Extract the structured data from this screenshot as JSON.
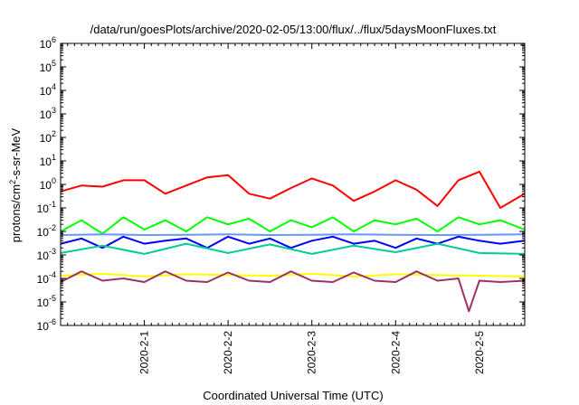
{
  "chart_data": {
    "type": "line",
    "title": "/data/run/goesPlots/archive/2020-02-05/13:00/flux/../flux/5daysMoonFluxes.txt",
    "xlabel": "Coordinated Universal Time (UTC)",
    "ylabel": {
      "base": "protons/cm",
      "sup": "2",
      "rest": "-s-sr-MeV"
    },
    "yscale": "log",
    "ylim": [
      1e-06,
      1000000.0
    ],
    "y_ticks": [
      {
        "exp": -6
      },
      {
        "exp": -5
      },
      {
        "exp": -4
      },
      {
        "exp": -3
      },
      {
        "exp": -2
      },
      {
        "exp": -1
      },
      {
        "exp": 0
      },
      {
        "exp": 1
      },
      {
        "exp": 2
      },
      {
        "exp": 3
      },
      {
        "exp": 4
      },
      {
        "exp": 5
      },
      {
        "exp": 6
      }
    ],
    "tick_base": "10",
    "xlim": [
      "2020-01-31 00:00",
      "2020-02-05 13:00"
    ],
    "x_ticks": [
      "2020-2-1",
      "2020-2-2",
      "2020-2-3",
      "2020-2-4",
      "2020-2-5"
    ],
    "grid": false,
    "series": [
      {
        "color": "#ff0000",
        "x": [
          "2020-01-31 00:00",
          "2020-01-31 06:00",
          "2020-01-31 12:00",
          "2020-01-31 18:00",
          "2020-02-01 00:00",
          "2020-02-01 06:00",
          "2020-02-01 12:00",
          "2020-02-01 18:00",
          "2020-02-02 00:00",
          "2020-02-02 06:00",
          "2020-02-02 12:00",
          "2020-02-02 18:00",
          "2020-02-03 00:00",
          "2020-02-03 06:00",
          "2020-02-03 12:00",
          "2020-02-03 18:00",
          "2020-02-04 00:00",
          "2020-02-04 06:00",
          "2020-02-04 12:00",
          "2020-02-04 18:00",
          "2020-02-05 00:00",
          "2020-02-05 06:00",
          "2020-02-05 13:00"
        ],
        "y": [
          0.5,
          0.9,
          0.8,
          1.5,
          1.5,
          0.4,
          0.9,
          2.0,
          2.5,
          0.4,
          0.25,
          0.7,
          1.8,
          0.9,
          0.2,
          0.5,
          1.5,
          0.6,
          0.12,
          1.5,
          3.5,
          0.1,
          0.4
        ]
      },
      {
        "color": "#00ff00",
        "x": [
          "2020-01-31 00:00",
          "2020-01-31 06:00",
          "2020-01-31 12:00",
          "2020-01-31 18:00",
          "2020-02-01 00:00",
          "2020-02-01 06:00",
          "2020-02-01 12:00",
          "2020-02-01 18:00",
          "2020-02-02 00:00",
          "2020-02-02 06:00",
          "2020-02-02 12:00",
          "2020-02-02 18:00",
          "2020-02-03 00:00",
          "2020-02-03 06:00",
          "2020-02-03 12:00",
          "2020-02-03 18:00",
          "2020-02-04 00:00",
          "2020-02-04 06:00",
          "2020-02-04 12:00",
          "2020-02-04 18:00",
          "2020-02-05 00:00",
          "2020-02-05 06:00",
          "2020-02-05 13:00"
        ],
        "y": [
          0.01,
          0.03,
          0.008,
          0.04,
          0.012,
          0.03,
          0.01,
          0.04,
          0.02,
          0.035,
          0.01,
          0.03,
          0.015,
          0.04,
          0.01,
          0.03,
          0.02,
          0.035,
          0.01,
          0.04,
          0.02,
          0.03,
          0.012
        ]
      },
      {
        "color": "#6699ff",
        "x": [
          "2020-01-31 00:00",
          "2020-01-31 12:00",
          "2020-02-01 00:00",
          "2020-02-01 12:00",
          "2020-02-02 00:00",
          "2020-02-02 12:00",
          "2020-02-03 00:00",
          "2020-02-03 12:00",
          "2020-02-04 00:00",
          "2020-02-04 12:00",
          "2020-02-05 00:00",
          "2020-02-05 13:00"
        ],
        "y": [
          0.007,
          0.0075,
          0.007,
          0.0072,
          0.0075,
          0.007,
          0.0072,
          0.0075,
          0.0072,
          0.007,
          0.0072,
          0.0075
        ]
      },
      {
        "color": "#0000ff",
        "x": [
          "2020-01-31 00:00",
          "2020-01-31 06:00",
          "2020-01-31 12:00",
          "2020-01-31 18:00",
          "2020-02-01 00:00",
          "2020-02-01 06:00",
          "2020-02-01 12:00",
          "2020-02-01 18:00",
          "2020-02-02 00:00",
          "2020-02-02 06:00",
          "2020-02-02 12:00",
          "2020-02-02 18:00",
          "2020-02-03 00:00",
          "2020-02-03 06:00",
          "2020-02-03 12:00",
          "2020-02-03 18:00",
          "2020-02-04 00:00",
          "2020-02-04 06:00",
          "2020-02-04 12:00",
          "2020-02-04 18:00",
          "2020-02-05 00:00",
          "2020-02-05 06:00",
          "2020-02-05 13:00"
        ],
        "y": [
          0.003,
          0.005,
          0.002,
          0.006,
          0.003,
          0.004,
          0.005,
          0.002,
          0.006,
          0.003,
          0.005,
          0.002,
          0.004,
          0.006,
          0.003,
          0.004,
          0.002,
          0.005,
          0.003,
          0.006,
          0.004,
          0.003,
          0.004
        ]
      },
      {
        "color": "#00cc99",
        "x": [
          "2020-01-31 00:00",
          "2020-01-31 12:00",
          "2020-02-01 00:00",
          "2020-02-01 12:00",
          "2020-02-02 00:00",
          "2020-02-02 12:00",
          "2020-02-03 00:00",
          "2020-02-03 12:00",
          "2020-02-04 00:00",
          "2020-02-04 12:00",
          "2020-02-05 00:00",
          "2020-02-05 13:00"
        ],
        "y": [
          0.0012,
          0.0025,
          0.0011,
          0.003,
          0.0012,
          0.0028,
          0.0011,
          0.0025,
          0.0013,
          0.003,
          0.0012,
          0.0011
        ]
      },
      {
        "color": "#ffff00",
        "x": [
          "2020-01-31 00:00",
          "2020-01-31 12:00",
          "2020-02-01 00:00",
          "2020-02-01 12:00",
          "2020-02-02 00:00",
          "2020-02-02 12:00",
          "2020-02-03 00:00",
          "2020-02-03 12:00",
          "2020-02-04 00:00",
          "2020-02-04 12:00",
          "2020-02-05 00:00",
          "2020-02-05 13:00"
        ],
        "y": [
          0.00013,
          0.00016,
          0.00012,
          0.00015,
          0.00014,
          0.00013,
          0.00016,
          0.00012,
          0.00015,
          0.00014,
          0.00013,
          0.00012
        ]
      },
      {
        "color": "#993366",
        "x": [
          "2020-01-31 00:00",
          "2020-01-31 06:00",
          "2020-01-31 12:00",
          "2020-01-31 18:00",
          "2020-02-01 00:00",
          "2020-02-01 06:00",
          "2020-02-01 12:00",
          "2020-02-01 18:00",
          "2020-02-02 00:00",
          "2020-02-02 06:00",
          "2020-02-02 12:00",
          "2020-02-02 18:00",
          "2020-02-03 00:00",
          "2020-02-03 06:00",
          "2020-02-03 12:00",
          "2020-02-03 18:00",
          "2020-02-04 00:00",
          "2020-02-04 06:00",
          "2020-02-04 12:00",
          "2020-02-04 18:00",
          "2020-02-04 21:00",
          "2020-02-05 00:00",
          "2020-02-05 06:00",
          "2020-02-05 13:00"
        ],
        "y": [
          7e-05,
          0.0002,
          8e-05,
          0.0001,
          7e-05,
          0.0002,
          8e-05,
          7e-05,
          0.00018,
          8e-05,
          7e-05,
          0.0002,
          8e-05,
          7e-05,
          0.00018,
          8e-05,
          7e-05,
          0.0002,
          8e-05,
          0.0001,
          4e-06,
          8e-05,
          7e-05,
          8e-05
        ]
      }
    ]
  }
}
